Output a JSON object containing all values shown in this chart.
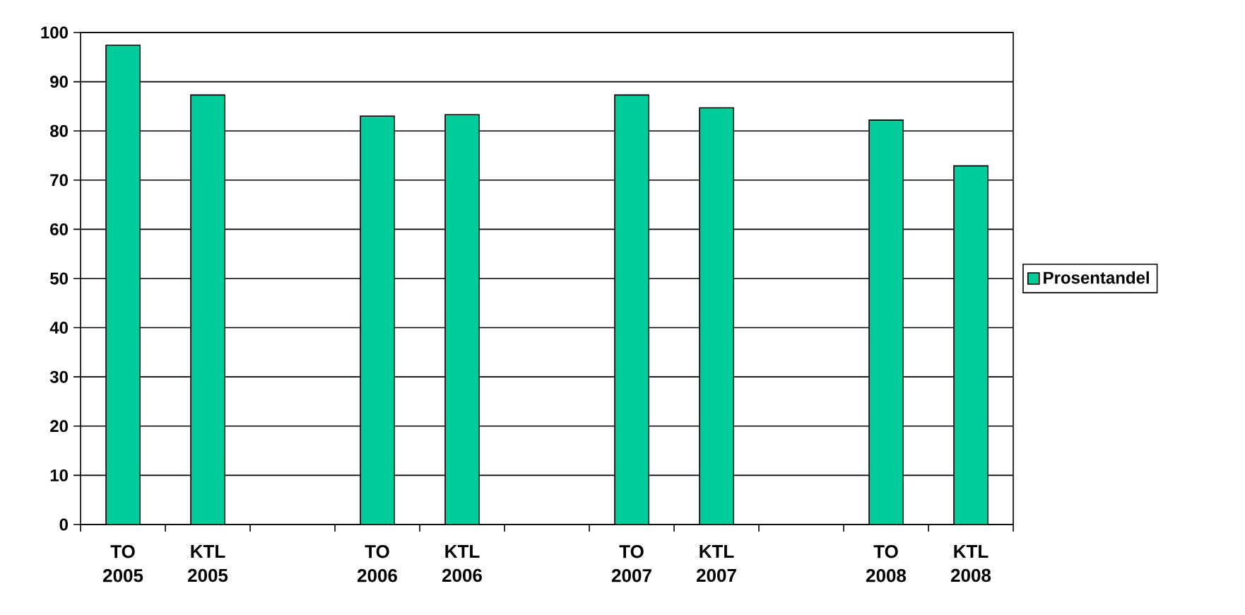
{
  "chart_data": {
    "type": "bar",
    "categories": [
      "TO 2005",
      "KTL 2005",
      null,
      "TO 2006",
      "KTL 2006",
      null,
      "TO 2007",
      "KTL 2007",
      null,
      "TO 2008",
      "KTL 2008"
    ],
    "series": [
      {
        "name": "Prosentandel",
        "color": "#00cc99",
        "values": [
          97.4,
          87.3,
          null,
          83.0,
          83.3,
          null,
          87.3,
          84.7,
          null,
          82.2,
          72.9
        ]
      }
    ],
    "ylim": [
      0,
      100
    ],
    "yticks": [
      0,
      10,
      20,
      30,
      40,
      50,
      60,
      70,
      80,
      90,
      100
    ],
    "grid": "y",
    "legend": "right"
  }
}
